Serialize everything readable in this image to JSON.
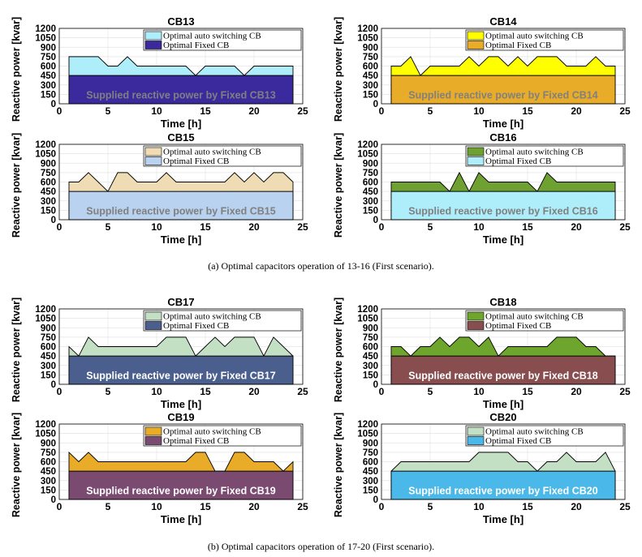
{
  "captions": {
    "a": "(a)  Optimal capacitors operation of 13-16 (First scenario).",
    "b": "(b)  Optimal capacitors operation of 17-20 (First scenario)."
  },
  "chart_data": [
    {
      "type": "area",
      "title": "CB13",
      "xlabel": "Time [h]",
      "ylabel": "Reactive power [kvar]",
      "xlim": [
        0,
        25
      ],
      "ylim": [
        0,
        1200
      ],
      "xticks": [
        0,
        5,
        10,
        15,
        20,
        25
      ],
      "yticks": [
        0,
        150,
        300,
        450,
        600,
        750,
        900,
        1050,
        1200
      ],
      "grid": true,
      "legend_position": "top-right",
      "x": [
        1,
        2,
        3,
        4,
        5,
        6,
        7,
        8,
        9,
        10,
        11,
        12,
        13,
        14,
        15,
        16,
        17,
        18,
        19,
        20,
        21,
        22,
        23,
        24
      ],
      "series": [
        {
          "name": "Optimal auto switching CB",
          "color": "#aeeefa",
          "values": [
            750,
            750,
            750,
            750,
            600,
            600,
            750,
            600,
            600,
            600,
            600,
            600,
            600,
            450,
            600,
            600,
            600,
            600,
            450,
            600,
            600,
            600,
            600,
            600
          ]
        },
        {
          "name": "Optimal Fixed CB",
          "color": "#3a2a9e",
          "values": [
            450,
            450,
            450,
            450,
            450,
            450,
            450,
            450,
            450,
            450,
            450,
            450,
            450,
            450,
            450,
            450,
            450,
            450,
            450,
            450,
            450,
            450,
            450,
            450
          ]
        }
      ],
      "annotation": "Supplied reactive power by Fixed CB13",
      "annotation_color": "#808080"
    },
    {
      "type": "area",
      "title": "CB14",
      "xlabel": "Time [h]",
      "ylabel": "Reactive power [kvar]",
      "xlim": [
        0,
        25
      ],
      "ylim": [
        0,
        1200
      ],
      "xticks": [
        0,
        5,
        10,
        15,
        20,
        25
      ],
      "yticks": [
        0,
        150,
        300,
        450,
        600,
        750,
        900,
        1050,
        1200
      ],
      "grid": true,
      "legend_position": "top-right",
      "x": [
        1,
        2,
        3,
        4,
        5,
        6,
        7,
        8,
        9,
        10,
        11,
        12,
        13,
        14,
        15,
        16,
        17,
        18,
        19,
        20,
        21,
        22,
        23,
        24
      ],
      "series": [
        {
          "name": "Optimal auto switching CB",
          "color": "#ffff00",
          "values": [
            600,
            600,
            750,
            450,
            600,
            600,
            600,
            600,
            750,
            600,
            750,
            750,
            600,
            750,
            600,
            750,
            750,
            750,
            600,
            600,
            600,
            750,
            600,
            600
          ]
        },
        {
          "name": "Optimal Fixed CB",
          "color": "#e8ac28",
          "values": [
            450,
            450,
            450,
            450,
            450,
            450,
            450,
            450,
            450,
            450,
            450,
            450,
            450,
            450,
            450,
            450,
            450,
            450,
            450,
            450,
            450,
            450,
            450,
            450
          ]
        }
      ],
      "annotation": "Supplied reactive power by Fixed CB14",
      "annotation_color": "#808080"
    },
    {
      "type": "area",
      "title": "CB15",
      "xlabel": "Time [h]",
      "ylabel": "Reactive power [kvar]",
      "xlim": [
        0,
        25
      ],
      "ylim": [
        0,
        1200
      ],
      "xticks": [
        0,
        5,
        10,
        15,
        20,
        25
      ],
      "yticks": [
        0,
        150,
        300,
        450,
        600,
        750,
        900,
        1050,
        1200
      ],
      "grid": true,
      "legend_position": "top-right",
      "x": [
        1,
        2,
        3,
        4,
        5,
        6,
        7,
        8,
        9,
        10,
        11,
        12,
        13,
        14,
        15,
        16,
        17,
        18,
        19,
        20,
        21,
        22,
        23,
        24
      ],
      "series": [
        {
          "name": "Optimal auto switching CB",
          "color": "#f0dcb4",
          "values": [
            600,
            600,
            750,
            600,
            450,
            750,
            750,
            600,
            600,
            600,
            750,
            600,
            600,
            600,
            600,
            600,
            600,
            750,
            600,
            750,
            600,
            750,
            750,
            600
          ]
        },
        {
          "name": "Optimal Fixed CB",
          "color": "#b8d2f0",
          "values": [
            450,
            450,
            450,
            450,
            450,
            450,
            450,
            450,
            450,
            450,
            450,
            450,
            450,
            450,
            450,
            450,
            450,
            450,
            450,
            450,
            450,
            450,
            450,
            450
          ]
        }
      ],
      "annotation": "Supplied reactive power by Fixed CB15",
      "annotation_color": "#808080"
    },
    {
      "type": "area",
      "title": "CB16",
      "xlabel": "Time [h]",
      "ylabel": "Reactive power [kvar]",
      "xlim": [
        0,
        25
      ],
      "ylim": [
        0,
        1200
      ],
      "xticks": [
        0,
        5,
        10,
        15,
        20,
        25
      ],
      "yticks": [
        0,
        150,
        300,
        450,
        600,
        750,
        900,
        1050,
        1200
      ],
      "grid": true,
      "legend_position": "top-right",
      "x": [
        1,
        2,
        3,
        4,
        5,
        6,
        7,
        8,
        9,
        10,
        11,
        12,
        13,
        14,
        15,
        16,
        17,
        18,
        19,
        20,
        21,
        22,
        23,
        24
      ],
      "series": [
        {
          "name": "Optimal auto switching CB",
          "color": "#6ea032",
          "values": [
            600,
            600,
            600,
            600,
            600,
            600,
            450,
            750,
            450,
            750,
            600,
            600,
            600,
            600,
            600,
            450,
            750,
            600,
            600,
            600,
            600,
            600,
            600,
            600
          ]
        },
        {
          "name": "Optimal Fixed CB",
          "color": "#aeeefa",
          "values": [
            450,
            450,
            450,
            450,
            450,
            450,
            450,
            450,
            450,
            450,
            450,
            450,
            450,
            450,
            450,
            450,
            450,
            450,
            450,
            450,
            450,
            450,
            450,
            450
          ]
        }
      ],
      "annotation": "Supplied reactive power by Fixed CB16",
      "annotation_color": "#808080"
    },
    {
      "type": "area",
      "title": "CB17",
      "xlabel": "Time [h]",
      "ylabel": "Reactive power [kvar]",
      "xlim": [
        0,
        25
      ],
      "ylim": [
        0,
        1200
      ],
      "xticks": [
        0,
        5,
        10,
        15,
        20,
        25
      ],
      "yticks": [
        0,
        150,
        300,
        450,
        600,
        750,
        900,
        1050,
        1200
      ],
      "grid": true,
      "legend_position": "top-right",
      "x": [
        1,
        2,
        3,
        4,
        5,
        6,
        7,
        8,
        9,
        10,
        11,
        12,
        13,
        14,
        15,
        16,
        17,
        18,
        19,
        20,
        21,
        22,
        23,
        24
      ],
      "series": [
        {
          "name": "Optimal auto switching CB",
          "color": "#c4e0c4",
          "values": [
            600,
            450,
            750,
            600,
            600,
            600,
            600,
            600,
            600,
            600,
            750,
            750,
            750,
            450,
            600,
            750,
            600,
            750,
            750,
            750,
            450,
            750,
            600,
            450
          ]
        },
        {
          "name": "Optimal Fixed CB",
          "color": "#4a5f8e",
          "values": [
            450,
            450,
            450,
            450,
            450,
            450,
            450,
            450,
            450,
            450,
            450,
            450,
            450,
            450,
            450,
            450,
            450,
            450,
            450,
            450,
            450,
            450,
            450,
            450
          ]
        }
      ],
      "annotation": "Supplied reactive power by Fixed CB17",
      "annotation_color": "#ffffff"
    },
    {
      "type": "area",
      "title": "CB18",
      "xlabel": "Time [h]",
      "ylabel": "Reactive power [kvar]",
      "xlim": [
        0,
        25
      ],
      "ylim": [
        0,
        1200
      ],
      "xticks": [
        0,
        5,
        10,
        15,
        20,
        25
      ],
      "yticks": [
        0,
        150,
        300,
        450,
        600,
        750,
        900,
        1050,
        1200
      ],
      "grid": true,
      "legend_position": "top-right",
      "x": [
        1,
        2,
        3,
        4,
        5,
        6,
        7,
        8,
        9,
        10,
        11,
        12,
        13,
        14,
        15,
        16,
        17,
        18,
        19,
        20,
        21,
        22,
        23,
        24
      ],
      "series": [
        {
          "name": "Optimal auto switching CB",
          "color": "#6ea52c",
          "values": [
            600,
            600,
            450,
            600,
            600,
            750,
            600,
            750,
            750,
            600,
            750,
            450,
            600,
            600,
            600,
            600,
            600,
            750,
            750,
            750,
            600,
            600,
            450,
            450
          ]
        },
        {
          "name": "Optimal Fixed CB",
          "color": "#874d4f",
          "values": [
            450,
            450,
            450,
            450,
            450,
            450,
            450,
            450,
            450,
            450,
            450,
            450,
            450,
            450,
            450,
            450,
            450,
            450,
            450,
            450,
            450,
            450,
            450,
            450
          ]
        }
      ],
      "annotation": "Supplied reactive power by Fixed CB18",
      "annotation_color": "#ffffff"
    },
    {
      "type": "area",
      "title": "CB19",
      "xlabel": "Time [h]",
      "ylabel": "Reactive power [kvar]",
      "xlim": [
        0,
        25
      ],
      "ylim": [
        0,
        1200
      ],
      "xticks": [
        0,
        5,
        10,
        15,
        20,
        25
      ],
      "yticks": [
        0,
        150,
        300,
        450,
        600,
        750,
        900,
        1050,
        1200
      ],
      "grid": true,
      "legend_position": "top-right",
      "x": [
        1,
        2,
        3,
        4,
        5,
        6,
        7,
        8,
        9,
        10,
        11,
        12,
        13,
        14,
        15,
        16,
        17,
        18,
        19,
        20,
        21,
        22,
        23,
        24
      ],
      "series": [
        {
          "name": "Optimal auto switching CB",
          "color": "#e8ac28",
          "values": [
            750,
            600,
            750,
            600,
            600,
            600,
            600,
            600,
            600,
            600,
            600,
            600,
            600,
            750,
            750,
            450,
            450,
            750,
            750,
            600,
            600,
            600,
            450,
            600
          ]
        },
        {
          "name": "Optimal Fixed CB",
          "color": "#7a4a70",
          "values": [
            450,
            450,
            450,
            450,
            450,
            450,
            450,
            450,
            450,
            450,
            450,
            450,
            450,
            450,
            450,
            450,
            450,
            450,
            450,
            450,
            450,
            450,
            450,
            450
          ]
        }
      ],
      "annotation": "Supplied reactive power by Fixed CB19",
      "annotation_color": "#ffffff"
    },
    {
      "type": "area",
      "title": "CB20",
      "xlabel": "Time [h]",
      "ylabel": "Reactive power [kvar]",
      "xlim": [
        0,
        25
      ],
      "ylim": [
        0,
        1200
      ],
      "xticks": [
        0,
        5,
        10,
        15,
        20,
        25
      ],
      "yticks": [
        0,
        150,
        300,
        450,
        600,
        750,
        900,
        1050,
        1200
      ],
      "grid": true,
      "legend_position": "top-right",
      "x": [
        1,
        2,
        3,
        4,
        5,
        6,
        7,
        8,
        9,
        10,
        11,
        12,
        13,
        14,
        15,
        16,
        17,
        18,
        19,
        20,
        21,
        22,
        23,
        24
      ],
      "series": [
        {
          "name": "Optimal auto switching CB",
          "color": "#c4e0c4",
          "values": [
            450,
            600,
            600,
            600,
            600,
            600,
            600,
            600,
            600,
            750,
            750,
            750,
            750,
            600,
            600,
            450,
            600,
            600,
            750,
            600,
            600,
            600,
            750,
            450
          ]
        },
        {
          "name": "Optimal Fixed CB",
          "color": "#4ab8e8",
          "values": [
            450,
            450,
            450,
            450,
            450,
            450,
            450,
            450,
            450,
            450,
            450,
            450,
            450,
            450,
            450,
            450,
            450,
            450,
            450,
            450,
            450,
            450,
            450,
            450
          ]
        }
      ],
      "annotation": "Supplied reactive power by Fixed CB20",
      "annotation_color": "#ffffff"
    }
  ]
}
